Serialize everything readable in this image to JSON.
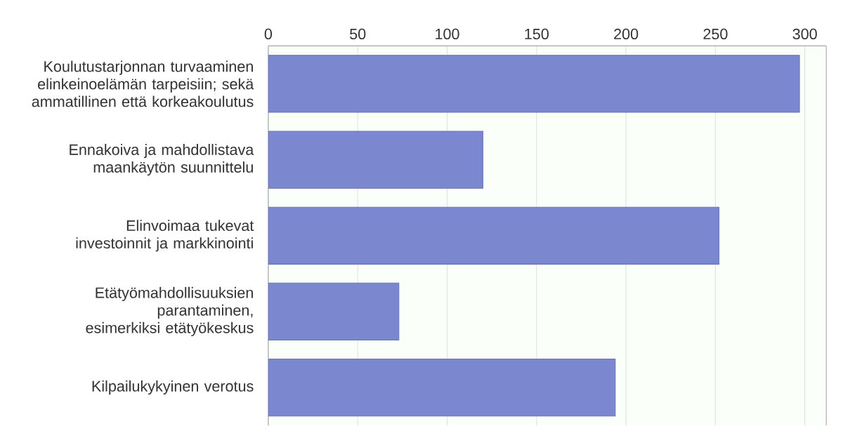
{
  "chart_data": {
    "type": "bar",
    "orientation": "horizontal",
    "categories": [
      "Koulutustarjonnan turvaaminen elinkeinoelämän tarpeisiin; sekä ammatillinen että korkeakoulutus",
      "Ennakoiva ja mahdollistava maankäytön suunnittelu",
      "Elinvoimaa tukevat investoinnit ja markkinointi",
      "Etätyömahdollisuuksien parantaminen, esimerkiksi etätyökeskus",
      "Kilpailukykyinen verotus"
    ],
    "values": [
      297,
      120,
      252,
      73,
      194
    ],
    "color": "#7b88d0",
    "xlim": [
      0,
      312
    ],
    "xticks": [
      0,
      50,
      100,
      150,
      200,
      250,
      300
    ],
    "grid": "x"
  }
}
